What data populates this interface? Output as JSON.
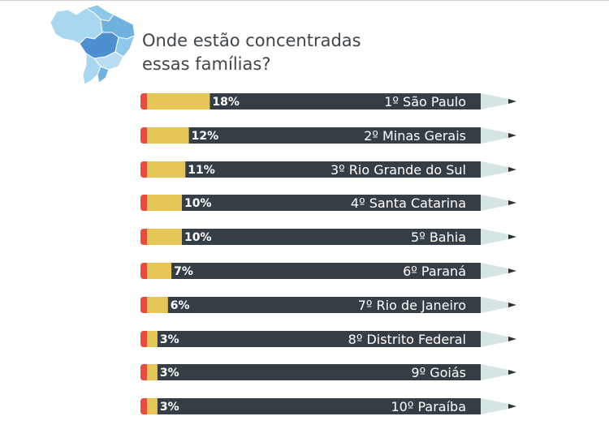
{
  "title_line1": "Onde estão concentradas",
  "title_line2": "essas famílias?",
  "icon": "brazil-map-icon",
  "colors": {
    "pencil_body": "#353e44",
    "fill": "#e5c656",
    "eraser": "#e84c3d",
    "tip_wood": "#d4e5e3",
    "tip_lead": "#2f3235",
    "map_light": "#a9d7ef",
    "map_mid": "#6fb2de",
    "map_dark": "#4d8fcf",
    "title": "#3f4549"
  },
  "chart_data": {
    "type": "bar",
    "orientation": "horizontal",
    "title": "Onde estão concentradas essas famílias?",
    "categories": [
      "1º São Paulo",
      "2º Minas Gerais",
      "3º Rio Grande do Sul",
      "4º Santa Catarina",
      "5º Bahia",
      "6º Paraná",
      "7º Rio de Janeiro",
      "8º Distrito Federal",
      "9º Goiás",
      "10º Paraíba"
    ],
    "values": [
      18,
      12,
      11,
      10,
      10,
      7,
      6,
      3,
      3,
      3
    ],
    "value_labels": [
      "18%",
      "12%",
      "11%",
      "10%",
      "10%",
      "7%",
      "6%",
      "3%",
      "3%",
      "3%"
    ],
    "unit": "%",
    "xlim": [
      0,
      100
    ]
  }
}
